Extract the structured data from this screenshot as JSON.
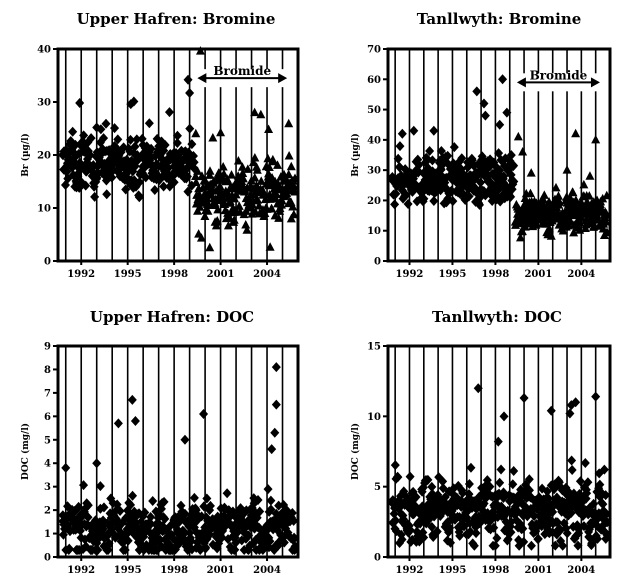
{
  "chart_data": [
    {
      "type": "scatter",
      "title": "Upper Hafren: Bromine",
      "ylabel": "Br (µg/l)",
      "xlabel": "",
      "xlim": [
        1990.5,
        2006.0
      ],
      "ylim": [
        0,
        40
      ],
      "yticks": [
        0,
        10,
        20,
        30,
        40
      ],
      "xticks": [
        1992,
        1995,
        1998,
        2001,
        2004
      ],
      "grid": "vertical-yearly",
      "annotation": {
        "label": "Bromide",
        "x_start": 1999.5,
        "x_end": 2005.3,
        "y": 34.5
      },
      "series": [
        {
          "marker": "diamond",
          "color": "#000000",
          "segments": [
            {
              "x_start": 1990.8,
              "x_end": 1999.3,
              "count": 300,
              "center": 18.5,
              "spread": 3.2,
              "min": 12,
              "max": 30,
              "outliers": [
                [
                  1991.9,
                  29.8
                ],
                [
                  1993.6,
                  25.9
                ],
                [
                  1995.2,
                  29.6
                ],
                [
                  1995.4,
                  30.1
                ],
                [
                  1997.7,
                  28.1
                ],
                [
                  1998.9,
                  34.2
                ],
                [
                  1999.0,
                  31.7
                ],
                [
                  1993.0,
                  25.2
                ],
                [
                  1996.4,
                  26.0
                ]
              ]
            }
          ]
        },
        {
          "marker": "triangle",
          "color": "#000000",
          "segments": [
            {
              "x_start": 1999.4,
              "x_end": 2005.8,
              "count": 260,
              "center": 12.5,
              "spread": 3.6,
              "min": 2,
              "max": 27,
              "outliers": [
                [
                  1999.7,
                  39.6
                ],
                [
                  1999.4,
                  24.0
                ],
                [
                  2000.5,
                  23.2
                ],
                [
                  2003.2,
                  28.0
                ],
                [
                  2003.6,
                  27.6
                ],
                [
                  2004.1,
                  24.8
                ],
                [
                  2005.4,
                  25.9
                ],
                [
                  2000.3,
                  2.5
                ],
                [
                  2004.2,
                  2.6
                ],
                [
                  2001.0,
                  24.2
                ]
              ]
            }
          ]
        }
      ]
    },
    {
      "type": "scatter",
      "title": "Tanllwyth: Bromine",
      "ylabel": "Br (µg/l)",
      "xlabel": "",
      "xlim": [
        1990.5,
        2006.0
      ],
      "ylim": [
        0,
        70
      ],
      "yticks": [
        0,
        10,
        20,
        30,
        40,
        50,
        60,
        70
      ],
      "xticks": [
        1992,
        1995,
        1998,
        2001,
        2004
      ],
      "grid": "vertical-yearly",
      "annotation": {
        "label": "Bromide",
        "x_start": 1999.5,
        "x_end": 2005.3,
        "y": 59
      },
      "series": [
        {
          "marker": "diamond",
          "color": "#000000",
          "segments": [
            {
              "x_start": 1990.8,
              "x_end": 1999.3,
              "count": 300,
              "center": 27,
              "spread": 5,
              "min": 18,
              "max": 44,
              "outliers": [
                [
                  1991.5,
                  42
                ],
                [
                  1992.3,
                  43
                ],
                [
                  1993.7,
                  43
                ],
                [
                  1996.7,
                  56
                ],
                [
                  1997.2,
                  52
                ],
                [
                  1997.3,
                  48
                ],
                [
                  1998.5,
                  60
                ],
                [
                  1998.8,
                  49
                ],
                [
                  1998.3,
                  45
                ]
              ]
            }
          ]
        },
        {
          "marker": "triangle",
          "color": "#000000",
          "segments": [
            {
              "x_start": 1999.4,
              "x_end": 2005.8,
              "count": 260,
              "center": 16,
              "spread": 4.5,
              "min": 5,
              "max": 30,
              "outliers": [
                [
                  1999.6,
                  41
                ],
                [
                  1999.9,
                  36
                ],
                [
                  2003.6,
                  42
                ],
                [
                  2005.0,
                  40
                ],
                [
                  2003.0,
                  30
                ],
                [
                  2004.6,
                  28
                ],
                [
                  2000.5,
                  29
                ]
              ]
            }
          ]
        }
      ]
    },
    {
      "type": "scatter",
      "title": "Upper Hafren: DOC",
      "ylabel": "DOC (mg/l)",
      "xlabel": "",
      "xlim": [
        1990.5,
        2006.0
      ],
      "ylim": [
        0,
        9
      ],
      "yticks": [
        0,
        1,
        2,
        3,
        4,
        5,
        6,
        7,
        8,
        9
      ],
      "xticks": [
        1992,
        1995,
        1998,
        2001,
        2004
      ],
      "grid": "vertical-yearly",
      "series": [
        {
          "marker": "diamond",
          "color": "#000000",
          "segments": [
            {
              "x_start": 1990.8,
              "x_end": 2005.8,
              "count": 520,
              "center": 1.2,
              "spread": 0.75,
              "min": 0.3,
              "max": 4.2,
              "outliers": [
                [
                  1994.4,
                  5.7
                ],
                [
                  1995.3,
                  6.7
                ],
                [
                  1995.5,
                  5.8
                ],
                [
                  1998.7,
                  5.0
                ],
                [
                  1999.9,
                  6.1
                ],
                [
                  2004.6,
                  8.1
                ],
                [
                  2004.6,
                  6.5
                ],
                [
                  2004.5,
                  5.3
                ],
                [
                  2004.3,
                  4.6
                ],
                [
                  1991.0,
                  3.8
                ],
                [
                  1993.0,
                  4.0
                ]
              ]
            }
          ]
        }
      ]
    },
    {
      "type": "scatter",
      "title": "Tanllwyth: DOC",
      "ylabel": "DOC (mg/l)",
      "xlabel": "",
      "xlim": [
        1990.5,
        2006.0
      ],
      "ylim": [
        0,
        15
      ],
      "yticks": [
        0,
        5,
        10,
        15
      ],
      "xticks": [
        1992,
        1995,
        1998,
        2001,
        2004
      ],
      "grid": "vertical-yearly",
      "series": [
        {
          "marker": "diamond",
          "color": "#000000",
          "segments": [
            {
              "x_start": 1990.8,
              "x_end": 2005.8,
              "count": 520,
              "center": 3.3,
              "spread": 1.5,
              "min": 0.8,
              "max": 9,
              "outliers": [
                [
                  1996.8,
                  12.0
                ],
                [
                  1998.6,
                  10.0
                ],
                [
                  2000.0,
                  11.3
                ],
                [
                  2001.9,
                  10.4
                ],
                [
                  2003.3,
                  10.8
                ],
                [
                  2003.6,
                  11.0
                ],
                [
                  2005.0,
                  11.4
                ],
                [
                  2003.2,
                  10.2
                ],
                [
                  1998.2,
                  8.2
                ]
              ]
            }
          ]
        }
      ]
    }
  ]
}
